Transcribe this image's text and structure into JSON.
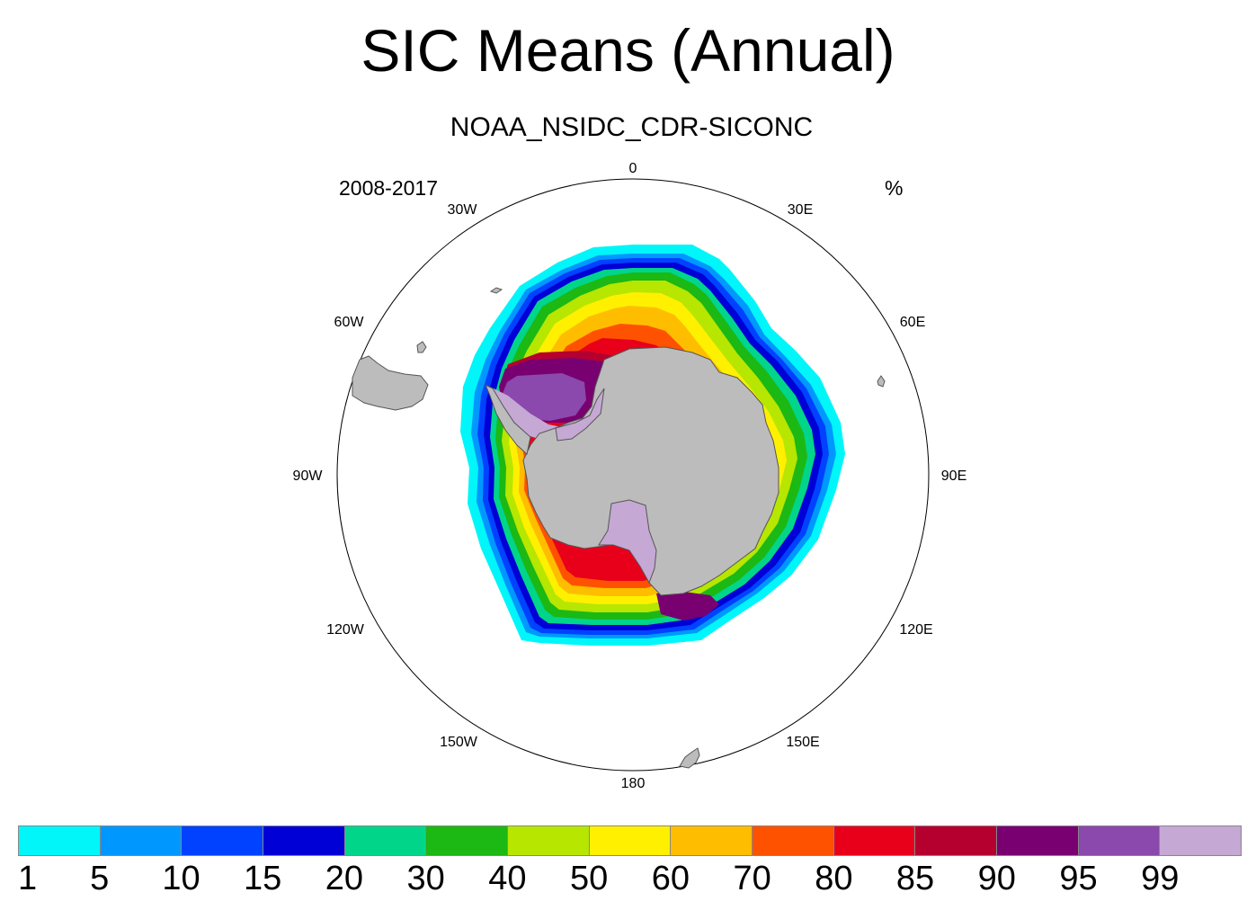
{
  "title": "SIC Means (Annual)",
  "subtitle": "NOAA_NSIDC_CDR-SICONC",
  "period": "2008-2017",
  "units": "%",
  "longitude_labels": [
    "0",
    "30E",
    "60E",
    "90E",
    "120E",
    "150E",
    "180",
    "150W",
    "120W",
    "90W",
    "60W",
    "30W"
  ],
  "colorbar": {
    "labels": [
      "1",
      "5",
      "10",
      "15",
      "20",
      "30",
      "40",
      "50",
      "60",
      "70",
      "80",
      "85",
      "90",
      "95",
      "99"
    ],
    "colors": [
      "#00f6f8",
      "#0098ff",
      "#0042ff",
      "#0000d6",
      "#00d58a",
      "#1cb814",
      "#b7e600",
      "#fff000",
      "#ffbd00",
      "#ff5200",
      "#e8001b",
      "#b5002f",
      "#790070",
      "#8b48ad",
      "#c5a8d4"
    ]
  },
  "colors": {
    "land": "#bcbcbc",
    "ice_shelf": "#c5a8d4",
    "ocean": "#ffffff"
  },
  "chart_data": {
    "type": "polar-stereographic-map",
    "hemisphere": "south",
    "variable": "sea ice concentration (annual mean)",
    "units": "%",
    "period": "2008-2017",
    "dataset": "NOAA_NSIDC_CDR-SICONC",
    "contour_levels": [
      1,
      5,
      10,
      15,
      20,
      30,
      40,
      50,
      60,
      70,
      80,
      85,
      90,
      95,
      99
    ]
  }
}
